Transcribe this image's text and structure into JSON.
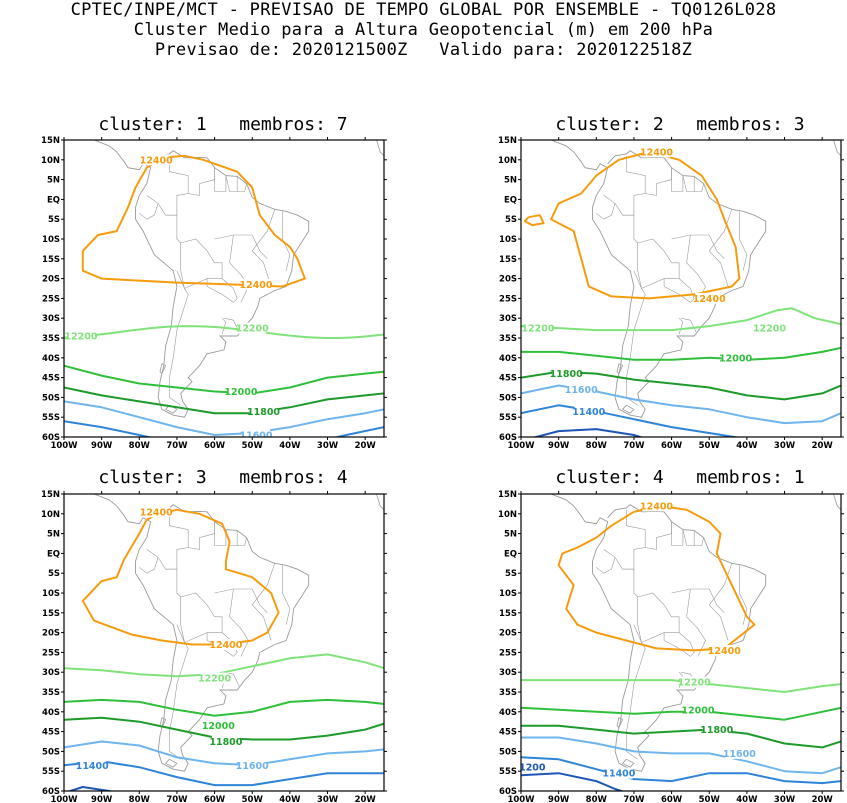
{
  "header": {
    "line1": "CPTEC/INPE/MCT - PREVISAO DE TEMPO GLOBAL POR ENSEMBLE - TQ0126L028",
    "line2": "Cluster Medio para a Altura Geopotencial (m) em 200 hPa",
    "line3": "Previsao de: 2020121500Z   Valido para: 2020122518Z"
  },
  "y_ticks": [
    "15N",
    "10N",
    "5N",
    "EQ",
    "5S",
    "10S",
    "15S",
    "20S",
    "25S",
    "30S",
    "35S",
    "40S",
    "45S",
    "50S",
    "55S",
    "60S"
  ],
  "x_ticks": [
    "100W",
    "90W",
    "80W",
    "70W",
    "60W",
    "50W",
    "40W",
    "30W",
    "20W"
  ],
  "colors": {
    "c12400": "#f59c0e",
    "c12200": "#7fe37a",
    "c12000": "#2fbf3a",
    "c11800": "#1e9a2b",
    "c11600": "#6fb4ec",
    "c11400": "#2f84d8",
    "c11200": "#1e56b8",
    "coast": "#9a9a9a"
  },
  "panels": [
    {
      "title": "cluster: 1   membros: 7",
      "labels": [
        "12400",
        "12400",
        "12200",
        "12200",
        "12000",
        "11800",
        "11600"
      ]
    },
    {
      "title": "cluster: 2   membros: 3",
      "labels": [
        "12400",
        "12400",
        "12200",
        "12200",
        "12000",
        "11800",
        "11600",
        "11400"
      ]
    },
    {
      "title": "cluster: 3   membros: 4",
      "labels": [
        "12400",
        "12400",
        "12200",
        "12000",
        "11800",
        "11600",
        "11400"
      ]
    },
    {
      "title": "cluster: 4   membros: 1",
      "labels": [
        "12400",
        "12400",
        "12200",
        "12000",
        "11800",
        "11600",
        "11400",
        "1200"
      ]
    }
  ]
}
